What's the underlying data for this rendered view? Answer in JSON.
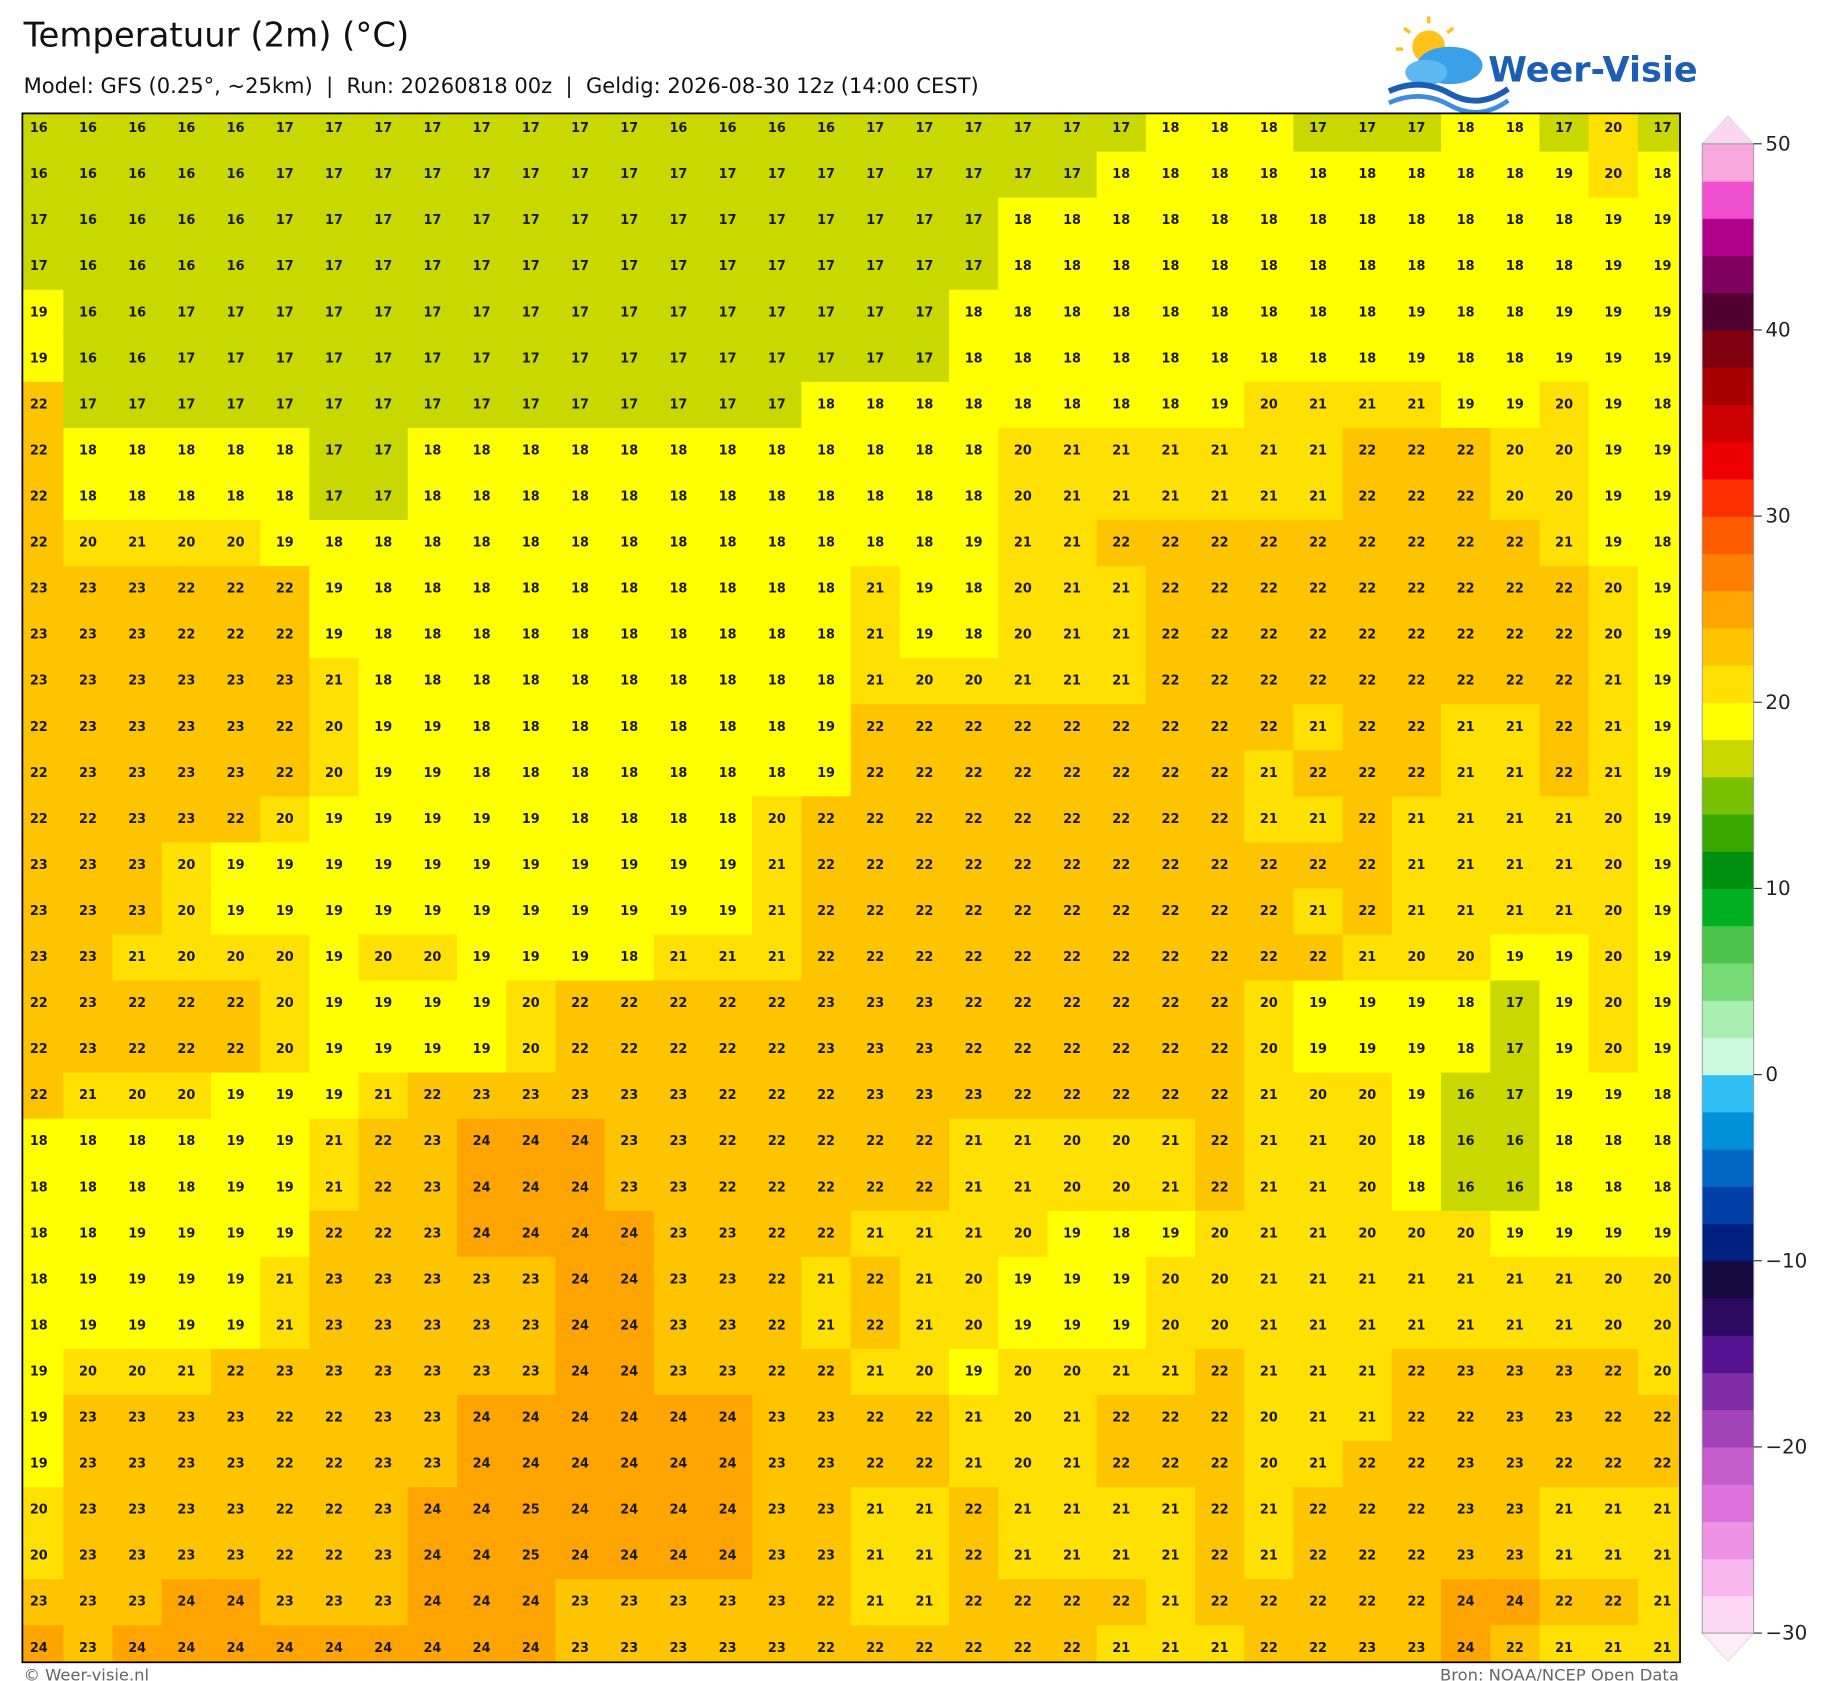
{
  "header": {
    "title": "Temperatuur (2m) (°C)",
    "subtitle": "Model: GFS (0.25°, ~25km)  |  Run: 20260818 00z  |  Geldig: 2026-08-30 12z (14:00 CEST)",
    "logo": "Weer-Visie"
  },
  "grid": {
    "rows": [
      [
        16,
        16,
        16,
        16,
        16,
        17,
        17,
        17,
        17,
        17,
        17,
        17,
        17,
        16,
        16,
        16,
        16,
        17,
        17,
        17,
        17,
        17,
        17,
        18,
        18,
        18,
        17,
        17,
        17,
        18,
        18,
        17,
        20,
        17
      ],
      [
        16,
        16,
        16,
        16,
        16,
        17,
        17,
        17,
        17,
        17,
        17,
        17,
        17,
        17,
        17,
        17,
        17,
        17,
        17,
        17,
        17,
        17,
        18,
        18,
        18,
        18,
        18,
        18,
        18,
        18,
        18,
        19,
        20,
        18
      ],
      [
        17,
        16,
        16,
        16,
        16,
        17,
        17,
        17,
        17,
        17,
        17,
        17,
        17,
        17,
        17,
        17,
        17,
        17,
        17,
        17,
        18,
        18,
        18,
        18,
        18,
        18,
        18,
        18,
        18,
        18,
        18,
        18,
        19,
        19
      ],
      [
        17,
        16,
        16,
        16,
        16,
        17,
        17,
        17,
        17,
        17,
        17,
        17,
        17,
        17,
        17,
        17,
        17,
        17,
        17,
        17,
        18,
        18,
        18,
        18,
        18,
        18,
        18,
        18,
        18,
        18,
        18,
        18,
        19,
        19
      ],
      [
        19,
        16,
        16,
        17,
        17,
        17,
        17,
        17,
        17,
        17,
        17,
        17,
        17,
        17,
        17,
        17,
        17,
        17,
        17,
        18,
        18,
        18,
        18,
        18,
        18,
        18,
        18,
        18,
        19,
        18,
        18,
        19,
        19,
        19
      ],
      [
        19,
        16,
        16,
        17,
        17,
        17,
        17,
        17,
        17,
        17,
        17,
        17,
        17,
        17,
        17,
        17,
        17,
        17,
        17,
        18,
        18,
        18,
        18,
        18,
        18,
        18,
        18,
        18,
        19,
        18,
        18,
        19,
        19,
        19
      ],
      [
        22,
        17,
        17,
        17,
        17,
        17,
        17,
        17,
        17,
        17,
        17,
        17,
        17,
        17,
        17,
        17,
        18,
        18,
        18,
        18,
        18,
        18,
        18,
        18,
        19,
        20,
        21,
        21,
        21,
        19,
        19,
        20,
        19,
        18
      ],
      [
        22,
        18,
        18,
        18,
        18,
        18,
        17,
        17,
        18,
        18,
        18,
        18,
        18,
        18,
        18,
        18,
        18,
        18,
        18,
        18,
        20,
        21,
        21,
        21,
        21,
        21,
        21,
        22,
        22,
        22,
        20,
        20,
        19,
        19
      ],
      [
        22,
        18,
        18,
        18,
        18,
        18,
        17,
        17,
        18,
        18,
        18,
        18,
        18,
        18,
        18,
        18,
        18,
        18,
        18,
        18,
        20,
        21,
        21,
        21,
        21,
        21,
        21,
        22,
        22,
        22,
        20,
        20,
        19,
        19
      ],
      [
        22,
        20,
        21,
        20,
        20,
        19,
        18,
        18,
        18,
        18,
        18,
        18,
        18,
        18,
        18,
        18,
        18,
        18,
        18,
        19,
        21,
        21,
        22,
        22,
        22,
        22,
        22,
        22,
        22,
        22,
        22,
        21,
        19,
        18
      ],
      [
        23,
        23,
        23,
        22,
        22,
        22,
        19,
        18,
        18,
        18,
        18,
        18,
        18,
        18,
        18,
        18,
        18,
        21,
        19,
        18,
        20,
        21,
        21,
        22,
        22,
        22,
        22,
        22,
        22,
        22,
        22,
        22,
        20,
        19
      ],
      [
        23,
        23,
        23,
        22,
        22,
        22,
        19,
        18,
        18,
        18,
        18,
        18,
        18,
        18,
        18,
        18,
        18,
        21,
        19,
        18,
        20,
        21,
        21,
        22,
        22,
        22,
        22,
        22,
        22,
        22,
        22,
        22,
        20,
        19
      ],
      [
        23,
        23,
        23,
        23,
        23,
        23,
        21,
        18,
        18,
        18,
        18,
        18,
        18,
        18,
        18,
        18,
        18,
        21,
        20,
        20,
        21,
        21,
        21,
        22,
        22,
        22,
        22,
        22,
        22,
        22,
        22,
        22,
        21,
        19
      ],
      [
        22,
        23,
        23,
        23,
        23,
        22,
        20,
        19,
        19,
        18,
        18,
        18,
        18,
        18,
        18,
        18,
        19,
        22,
        22,
        22,
        22,
        22,
        22,
        22,
        22,
        22,
        21,
        22,
        22,
        21,
        21,
        22,
        21,
        19
      ],
      [
        22,
        23,
        23,
        23,
        23,
        22,
        20,
        19,
        19,
        18,
        18,
        18,
        18,
        18,
        18,
        18,
        19,
        22,
        22,
        22,
        22,
        22,
        22,
        22,
        22,
        21,
        22,
        22,
        22,
        21,
        21,
        22,
        21,
        19
      ],
      [
        22,
        22,
        23,
        23,
        22,
        20,
        19,
        19,
        19,
        19,
        19,
        18,
        18,
        18,
        18,
        20,
        22,
        22,
        22,
        22,
        22,
        22,
        22,
        22,
        22,
        21,
        21,
        22,
        21,
        21,
        21,
        21,
        20,
        19
      ],
      [
        23,
        23,
        23,
        20,
        19,
        19,
        19,
        19,
        19,
        19,
        19,
        19,
        19,
        19,
        19,
        21,
        22,
        22,
        22,
        22,
        22,
        22,
        22,
        22,
        22,
        22,
        22,
        22,
        21,
        21,
        21,
        21,
        20,
        19
      ],
      [
        23,
        23,
        23,
        20,
        19,
        19,
        19,
        19,
        19,
        19,
        19,
        19,
        19,
        19,
        19,
        21,
        22,
        22,
        22,
        22,
        22,
        22,
        22,
        22,
        22,
        22,
        21,
        22,
        21,
        21,
        21,
        21,
        20,
        19
      ],
      [
        23,
        23,
        21,
        20,
        20,
        20,
        19,
        20,
        20,
        19,
        19,
        19,
        18,
        21,
        21,
        21,
        22,
        22,
        22,
        22,
        22,
        22,
        22,
        22,
        22,
        22,
        22,
        21,
        20,
        20,
        19,
        19,
        20,
        19
      ],
      [
        22,
        23,
        22,
        22,
        22,
        20,
        19,
        19,
        19,
        19,
        20,
        22,
        22,
        22,
        22,
        22,
        23,
        23,
        23,
        22,
        22,
        22,
        22,
        22,
        22,
        20,
        19,
        19,
        19,
        18,
        17,
        19,
        20,
        19
      ],
      [
        22,
        23,
        22,
        22,
        22,
        20,
        19,
        19,
        19,
        19,
        20,
        22,
        22,
        22,
        22,
        22,
        23,
        23,
        23,
        22,
        22,
        22,
        22,
        22,
        22,
        20,
        19,
        19,
        19,
        18,
        17,
        19,
        20,
        19
      ],
      [
        22,
        21,
        20,
        20,
        19,
        19,
        19,
        21,
        22,
        23,
        23,
        23,
        23,
        23,
        22,
        22,
        22,
        23,
        23,
        23,
        22,
        22,
        22,
        22,
        22,
        21,
        20,
        20,
        19,
        16,
        17,
        19,
        19,
        18
      ],
      [
        18,
        18,
        18,
        18,
        19,
        19,
        21,
        22,
        23,
        24,
        24,
        24,
        23,
        23,
        22,
        22,
        22,
        22,
        22,
        21,
        21,
        20,
        20,
        21,
        22,
        21,
        21,
        20,
        18,
        16,
        16,
        18,
        18,
        18
      ],
      [
        18,
        18,
        18,
        18,
        19,
        19,
        21,
        22,
        23,
        24,
        24,
        24,
        23,
        23,
        22,
        22,
        22,
        22,
        22,
        21,
        21,
        20,
        20,
        21,
        22,
        21,
        21,
        20,
        18,
        16,
        16,
        18,
        18,
        18
      ],
      [
        18,
        18,
        19,
        19,
        19,
        19,
        22,
        22,
        23,
        24,
        24,
        24,
        24,
        23,
        23,
        22,
        22,
        21,
        21,
        21,
        20,
        19,
        18,
        19,
        20,
        21,
        21,
        20,
        20,
        20,
        19,
        19,
        19,
        19
      ],
      [
        18,
        19,
        19,
        19,
        19,
        21,
        23,
        23,
        23,
        23,
        23,
        24,
        24,
        23,
        23,
        22,
        21,
        22,
        21,
        20,
        19,
        19,
        19,
        20,
        20,
        21,
        21,
        21,
        21,
        21,
        21,
        21,
        20,
        20
      ],
      [
        18,
        19,
        19,
        19,
        19,
        21,
        23,
        23,
        23,
        23,
        23,
        24,
        24,
        23,
        23,
        22,
        21,
        22,
        21,
        20,
        19,
        19,
        19,
        20,
        20,
        21,
        21,
        21,
        21,
        21,
        21,
        21,
        20,
        20
      ],
      [
        19,
        20,
        20,
        21,
        22,
        23,
        23,
        23,
        23,
        23,
        23,
        24,
        24,
        23,
        23,
        22,
        22,
        21,
        20,
        19,
        20,
        20,
        21,
        21,
        22,
        21,
        21,
        21,
        22,
        23,
        23,
        23,
        22,
        20
      ],
      [
        19,
        23,
        23,
        23,
        23,
        22,
        22,
        23,
        23,
        24,
        24,
        24,
        24,
        24,
        24,
        23,
        23,
        22,
        22,
        21,
        20,
        21,
        22,
        22,
        22,
        20,
        21,
        21,
        22,
        22,
        23,
        23,
        22,
        22
      ],
      [
        19,
        23,
        23,
        23,
        23,
        22,
        22,
        23,
        23,
        24,
        24,
        24,
        24,
        24,
        24,
        23,
        23,
        22,
        22,
        21,
        20,
        21,
        22,
        22,
        22,
        20,
        21,
        22,
        22,
        23,
        23,
        22,
        22,
        22
      ],
      [
        20,
        23,
        23,
        23,
        23,
        22,
        22,
        23,
        24,
        24,
        25,
        24,
        24,
        24,
        24,
        23,
        23,
        21,
        21,
        22,
        21,
        21,
        21,
        21,
        22,
        21,
        22,
        22,
        22,
        23,
        23,
        21,
        21,
        21
      ],
      [
        20,
        23,
        23,
        23,
        23,
        22,
        22,
        23,
        24,
        24,
        25,
        24,
        24,
        24,
        24,
        23,
        23,
        21,
        21,
        22,
        21,
        21,
        21,
        21,
        22,
        21,
        22,
        22,
        22,
        23,
        23,
        21,
        21,
        21
      ],
      [
        23,
        23,
        23,
        24,
        24,
        23,
        23,
        23,
        24,
        24,
        24,
        23,
        23,
        23,
        23,
        23,
        22,
        21,
        21,
        22,
        22,
        22,
        22,
        21,
        22,
        22,
        22,
        22,
        22,
        24,
        24,
        22,
        22,
        21
      ],
      [
        24,
        23,
        24,
        24,
        24,
        24,
        24,
        24,
        24,
        24,
        24,
        23,
        23,
        23,
        23,
        23,
        22,
        22,
        22,
        22,
        22,
        22,
        21,
        21,
        21,
        22,
        22,
        23,
        23,
        24,
        22,
        21,
        21,
        21
      ]
    ]
  },
  "colorbar": {
    "lim": [
      -30,
      50
    ],
    "ticks": [
      {
        "value": -30,
        "label": "−30"
      },
      {
        "value": -20,
        "label": "−20"
      },
      {
        "value": -10,
        "label": "−10"
      },
      0,
      10,
      20,
      30,
      40,
      50
    ],
    "step": 2,
    "colors": [
      "#fcd8f5",
      "#f8b8ef",
      "#ee92e6",
      "#de72dc",
      "#c45ccc",
      "#a343b8",
      "#7f2ca4",
      "#551290",
      "#2c0a62",
      "#140a40",
      "#001f80",
      "#0040a8",
      "#0066c4",
      "#0090d8",
      "#30c0f4",
      "#ccf8dc",
      "#a8eeb0",
      "#76da76",
      "#4cc44c",
      "#00b020",
      "#009010",
      "#38a800",
      "#78c000",
      "#c8d800",
      "#ffff00",
      "#ffe000",
      "#ffc400",
      "#ffa400",
      "#ff8000",
      "#ff5c00",
      "#ff3000",
      "#ee0000",
      "#cc0000",
      "#a80000",
      "#800010",
      "#500030",
      "#800060",
      "#b0008c",
      "#f050d0",
      "#f8a8dc"
    ]
  },
  "footer": {
    "left": "© Weer-visie.nl",
    "right": "Bron: NOAA/NCEP Open Data"
  }
}
